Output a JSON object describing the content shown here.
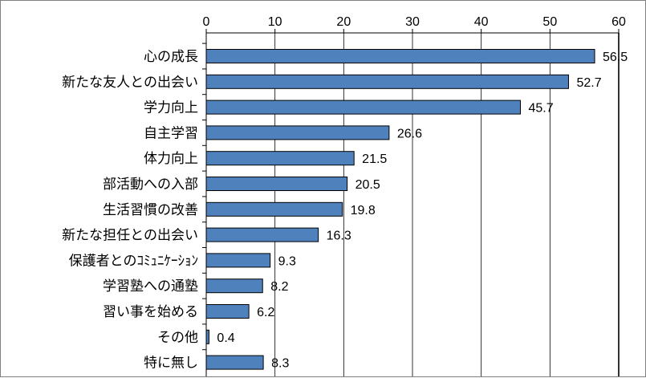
{
  "chart_data": {
    "type": "bar",
    "orientation": "horizontal",
    "categories": [
      "心の成長",
      "新たな友人との出会い",
      "学力向上",
      "自主学習",
      "体力向上",
      "部活動への入部",
      "生活習慣の改善",
      "新たな担任との出会い",
      "保護者とのｺﾐｭﾆｹｰｼｮﾝ",
      "学習塾への通塾",
      "習い事を始める",
      "その他",
      "特に無し"
    ],
    "values": [
      56.5,
      52.7,
      45.7,
      26.6,
      21.5,
      20.5,
      19.8,
      16.3,
      9.3,
      8.2,
      6.2,
      0.4,
      8.3
    ],
    "value_labels": [
      "56.5",
      "52.7",
      "45.7",
      "26.6",
      "21.5",
      "20.5",
      "19.8",
      "16.3",
      "9.3",
      "8.2",
      "6.2",
      "0.4",
      "8.3"
    ],
    "xlim": [
      0,
      60
    ],
    "xticks": [
      "0",
      "10",
      "20",
      "30",
      "40",
      "50",
      "60"
    ],
    "xaxis_position": "top",
    "grid": true,
    "bar_color": "#4f81bd",
    "bar_edge_color": "#000000"
  }
}
